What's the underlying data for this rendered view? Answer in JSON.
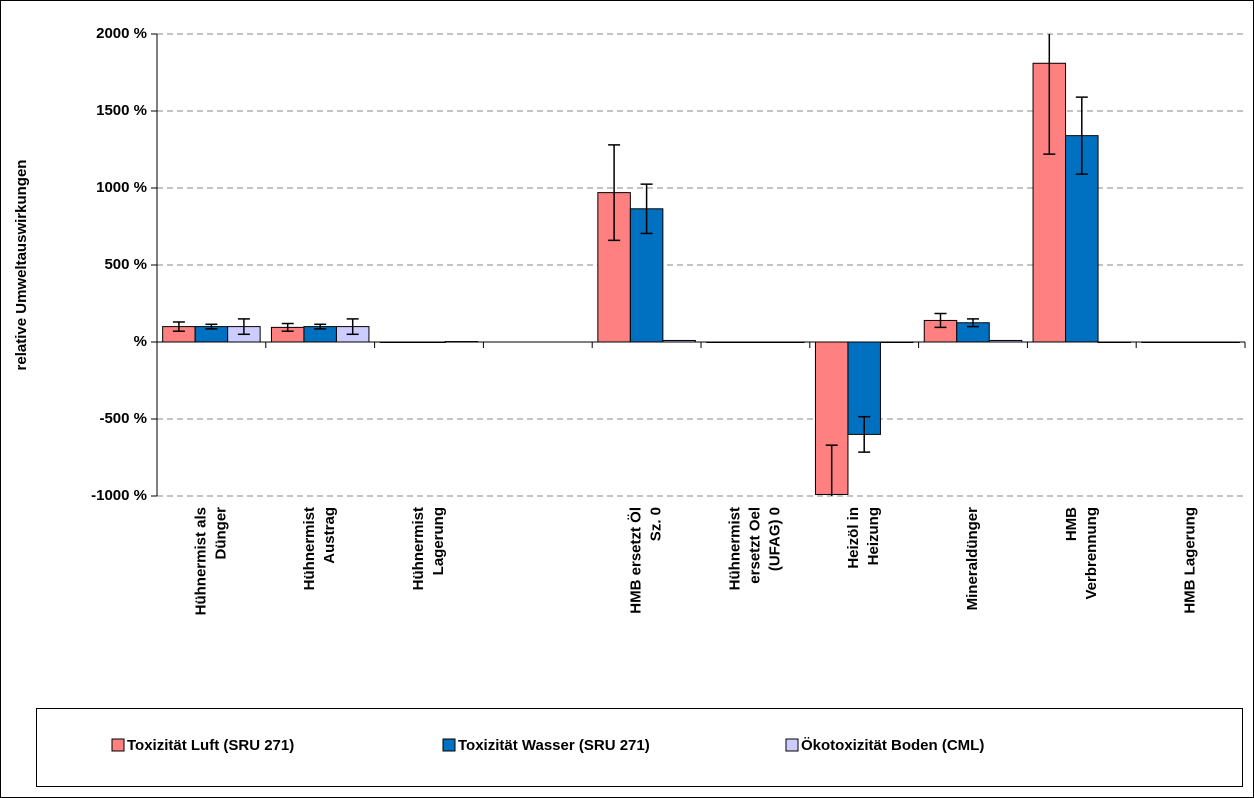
{
  "chart_data": {
    "type": "bar",
    "y_label": "relative Umweltauswirkungen",
    "categories": [
      "Hühnermist als\nDünger",
      "Hühnermist\nAustrag",
      "Hühnermist\nLagerung",
      null,
      "HMB ersetzt Öl\nSz. 0",
      "Hühnermist\nersetzt Oel\n(UFAG) 0",
      "Heizöl in\nHeizung",
      "Mineraldünger",
      "HMB\nVerbrennung",
      "HMB Lagerung"
    ],
    "series": [
      {
        "name": "Toxizität Luft (SRU 271)",
        "color": "#ff8080",
        "values": [
          100,
          95,
          0,
          null,
          970,
          0,
          -990,
          140,
          1810,
          0
        ],
        "errors": [
          30,
          25,
          0,
          null,
          310,
          0,
          320,
          45,
          590,
          0
        ]
      },
      {
        "name": "Toxizität Wasser (SRU 271)",
        "color": "#0070c0",
        "values": [
          100,
          100,
          0,
          null,
          865,
          0,
          -600,
          125,
          1340,
          0
        ],
        "errors": [
          15,
          15,
          0,
          null,
          160,
          0,
          115,
          25,
          250,
          0
        ]
      },
      {
        "name": "Ökotoxizität Boden (CML)",
        "color": "#ccccff",
        "values": [
          100,
          100,
          3,
          null,
          10,
          0,
          0,
          10,
          0,
          0
        ],
        "errors": [
          50,
          50,
          0,
          null,
          0,
          0,
          0,
          0,
          0,
          0
        ]
      }
    ],
    "ylim": [
      -1000,
      2000
    ],
    "yticks": [
      {
        "value": -1000,
        "label": "-1000 %"
      },
      {
        "value": -500,
        "label": "-500 %"
      },
      {
        "value": 0,
        "label": "%"
      },
      {
        "value": 500,
        "label": "500 %"
      },
      {
        "value": 1000,
        "label": "1000 %"
      },
      {
        "value": 1500,
        "label": "1500 %"
      },
      {
        "value": 2000,
        "label": "2000 %"
      }
    ],
    "grid": true,
    "legend": "bottom"
  }
}
